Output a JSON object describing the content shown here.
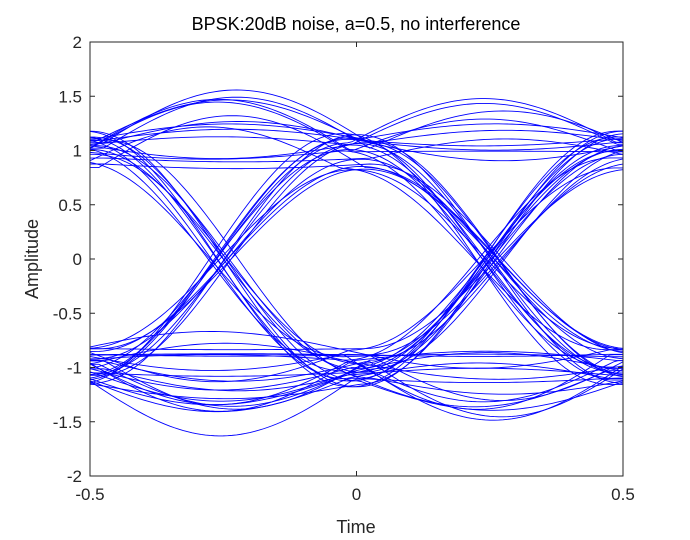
{
  "chart_data": {
    "type": "line",
    "title": "BPSK:20dB noise, a=0.5, no interference",
    "xlabel": "Time",
    "ylabel": "Amplitude",
    "xlim": [
      -0.5,
      0.5
    ],
    "ylim": [
      -2,
      2
    ],
    "xticks": [
      "-0.5",
      "0",
      "0.5"
    ],
    "yticks": [
      "-2",
      "-1.5",
      "-1",
      "-0.5",
      "0",
      "0.5",
      "1",
      "1.5",
      "2"
    ],
    "grid": false,
    "series_color": "#0000ff",
    "eye_diagram": {
      "symbol_levels": [
        -1,
        1
      ],
      "crossing_times": [
        -0.25,
        0.25
      ],
      "trace_count": 60,
      "peak_overshoot": 1.55
    },
    "series": [
      {
        "x": [
          -0.5,
          -0.25,
          0,
          0.25,
          0.5
        ],
        "y": [
          1.0,
          1.45,
          1.0,
          1.4,
          1.0
        ]
      },
      {
        "x": [
          -0.5,
          -0.25,
          0,
          0.25,
          0.5
        ],
        "y": [
          1.05,
          0.05,
          -1.0,
          0.0,
          1.0
        ]
      },
      {
        "x": [
          -0.5,
          -0.25,
          0,
          0.25,
          0.5
        ],
        "y": [
          -1.0,
          -1.4,
          -1.0,
          -1.45,
          -1.0
        ]
      },
      {
        "x": [
          -0.5,
          -0.25,
          0,
          0.25,
          0.5
        ],
        "y": [
          -1.0,
          0.0,
          1.0,
          0.0,
          -1.0
        ]
      },
      {
        "x": [
          -0.5,
          -0.25,
          0,
          0.25,
          0.5
        ],
        "y": [
          1.0,
          1.1,
          1.05,
          0.1,
          -1.0
        ]
      },
      {
        "x": [
          -0.5,
          -0.25,
          0,
          0.25,
          0.5
        ],
        "y": [
          -1.0,
          -1.1,
          -1.0,
          -0.05,
          1.0
        ]
      }
    ]
  }
}
